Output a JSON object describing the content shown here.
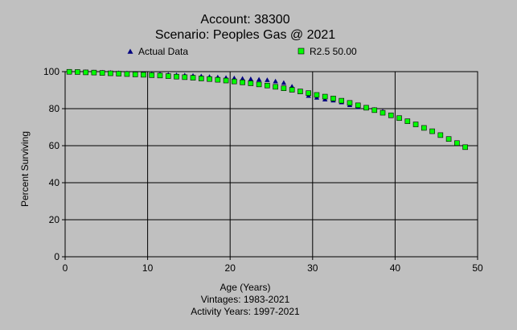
{
  "chart_data": {
    "type": "scatter",
    "title": "Account: 38300",
    "subtitle": "Scenario: Peoples Gas @ 2021",
    "xlabel": "Age (Years)",
    "ylabel": "Percent Surviving",
    "xlim": [
      0,
      50
    ],
    "ylim": [
      0,
      100
    ],
    "x_ticks": [
      0,
      10,
      20,
      30,
      40,
      50
    ],
    "y_ticks": [
      0,
      20,
      40,
      60,
      80,
      100
    ],
    "grid": true,
    "legend_position": "top",
    "footer_lines": [
      "Vintages: 1983-2021",
      "Activity Years: 1997-2021"
    ],
    "series": [
      {
        "name": "Actual Data",
        "marker": "triangle",
        "color": "#000080",
        "x": [
          0.5,
          1.5,
          2.5,
          3.5,
          4.5,
          5.5,
          6.5,
          7.5,
          8.5,
          9.5,
          10.5,
          11.5,
          12.5,
          13.5,
          14.5,
          15.5,
          16.5,
          17.5,
          18.5,
          19.5,
          20.5,
          21.5,
          22.5,
          23.5,
          24.5,
          25.5,
          26.5,
          27.5,
          28.5,
          29.5,
          30.5,
          31.5,
          32.5,
          33.5,
          34.5,
          35.5,
          36.5,
          37.5,
          38.5
        ],
        "y": [
          100,
          99.9,
          99.8,
          99.7,
          99.6,
          99.5,
          99.3,
          99.2,
          99.0,
          98.9,
          98.7,
          98.6,
          98.4,
          98.2,
          98.0,
          97.8,
          97.5,
          97.2,
          97.0,
          96.7,
          96.5,
          96.2,
          96.0,
          95.8,
          95.5,
          94.8,
          94.0,
          92.0,
          89.0,
          87.0,
          86.0,
          85.0,
          84.5,
          83.5,
          82.0,
          81.0,
          80.5,
          79.5,
          78.5
        ]
      },
      {
        "name": "R2.5 50.00",
        "marker": "square",
        "color": "#00ff00",
        "x": [
          0.5,
          1.5,
          2.5,
          3.5,
          4.5,
          5.5,
          6.5,
          7.5,
          8.5,
          9.5,
          10.5,
          11.5,
          12.5,
          13.5,
          14.5,
          15.5,
          16.5,
          17.5,
          18.5,
          19.5,
          20.5,
          21.5,
          22.5,
          23.5,
          24.5,
          25.5,
          26.5,
          27.5,
          28.5,
          29.5,
          30.5,
          31.5,
          32.5,
          33.5,
          34.5,
          35.5,
          36.5,
          37.5,
          38.5,
          39.5,
          40.5,
          41.5,
          42.5,
          43.5,
          44.5,
          45.5,
          46.5,
          47.5,
          48.5
        ],
        "y": [
          99.9,
          99.8,
          99.6,
          99.5,
          99.3,
          99.1,
          98.9,
          98.7,
          98.5,
          98.3,
          98.1,
          97.9,
          97.6,
          97.3,
          97.0,
          96.7,
          96.3,
          96.0,
          95.6,
          95.2,
          94.7,
          94.2,
          93.7,
          93.1,
          92.5,
          91.8,
          91.0,
          90.2,
          89.3,
          88.4,
          87.4,
          86.5,
          85.5,
          84.3,
          83.1,
          81.8,
          80.5,
          79.2,
          77.8,
          76.4,
          74.9,
          73.2,
          71.5,
          69.6,
          67.8,
          65.7,
          63.6,
          61.4,
          59.2
        ]
      }
    ]
  }
}
